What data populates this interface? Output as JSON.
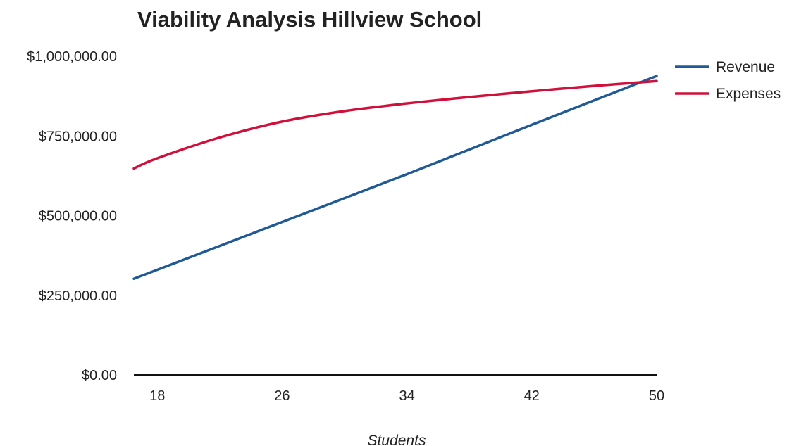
{
  "chart_data": {
    "type": "line",
    "title": "Viability Analysis Hillview School",
    "xlabel": "Students",
    "ylabel": "",
    "x": [
      18,
      26,
      34,
      42,
      50
    ],
    "x_tick_labels": [
      "18",
      "26",
      "34",
      "42",
      "50"
    ],
    "y_tick_labels": [
      "$1,000,000.00",
      "$750,000.00",
      "$500,000.00",
      "$250,000.00",
      "$0.00"
    ],
    "y_ticks": [
      1000000,
      750000,
      500000,
      250000,
      0
    ],
    "ylim": [
      0,
      1000000
    ],
    "xlim": [
      16.5,
      50
    ],
    "grid": false,
    "legend_position": "top-right",
    "series": [
      {
        "name": "Revenue",
        "color": "#1f5a96",
        "points": [
          [
            16.5,
            302000
          ],
          [
            18,
            330000
          ],
          [
            26,
            480000
          ],
          [
            34,
            630000
          ],
          [
            42,
            785000
          ],
          [
            50,
            938000
          ]
        ]
      },
      {
        "name": "Expenses",
        "color": "#d0103a",
        "points": [
          [
            16.5,
            648000
          ],
          [
            18,
            680000
          ],
          [
            22,
            745000
          ],
          [
            26,
            795000
          ],
          [
            30,
            828000
          ],
          [
            34,
            852000
          ],
          [
            38,
            872000
          ],
          [
            42,
            890000
          ],
          [
            46,
            907000
          ],
          [
            50,
            922000
          ]
        ]
      }
    ]
  }
}
